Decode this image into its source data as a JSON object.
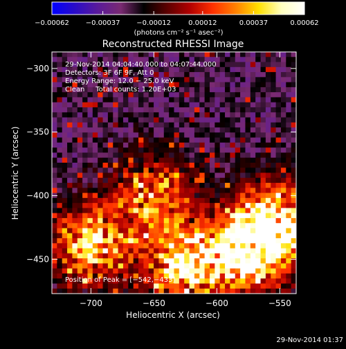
{
  "chart_data": {
    "type": "heatmap",
    "title": "Reconstructed RHESSI Image",
    "xlabel": "Heliocentric X (arcsec)",
    "ylabel": "Heliocentric Y (arcsec)",
    "xlim": [
      -731,
      -537
    ],
    "ylim": [
      -477,
      -287
    ],
    "x_ticks": [
      -700,
      -650,
      -600,
      -550
    ],
    "y_ticks": [
      -300,
      -350,
      -400,
      -450
    ],
    "x_tick_labels": [
      "−700",
      "−650",
      "−600",
      "−550"
    ],
    "y_tick_labels": [
      "−300",
      "−350",
      "−400",
      "−450"
    ],
    "colorbar": {
      "range": [
        -0.00062,
        0.00062
      ],
      "tick_values": [
        -0.00062,
        -0.00037,
        -0.00012,
        0.00012,
        0.00037,
        0.00062
      ],
      "tick_labels": [
        "−0.00062",
        "−0.00037",
        "−0.00012",
        "0.00012",
        "0.00037",
        "0.00062"
      ],
      "units": "(photons cm⁻² s⁻¹ asec⁻²)",
      "colormap": [
        "#0000ff",
        "#2a0cc8",
        "#5a1a9a",
        "#7a2a72",
        "#000000",
        "#5a0000",
        "#b00000",
        "#ff3000",
        "#ff8000",
        "#ffe000",
        "#ffffc0",
        "#ffffff"
      ]
    },
    "annotations": [
      "29-Nov-2014 04:04:40.000 to 04:07:44.000",
      "Detectors: 3F 6F 9F, Att 0",
      "Energy Range: 12.0 − 25.0 keV",
      "Clean     Total counts: 1.20E+03"
    ],
    "peak_label": "Position of Peak = [−542,−433]",
    "peak": [
      -542,
      -433
    ],
    "bright_regions": [
      {
        "x": -555,
        "y": -420,
        "level": 0.9
      },
      {
        "x": -575,
        "y": -445,
        "level": 1.0
      },
      {
        "x": -625,
        "y": -455,
        "level": 0.95
      },
      {
        "x": -700,
        "y": -440,
        "level": 0.9
      },
      {
        "x": -650,
        "y": -400,
        "level": 0.7
      }
    ]
  },
  "footer": {
    "timestamp": "29-Nov-2014 01:37"
  }
}
